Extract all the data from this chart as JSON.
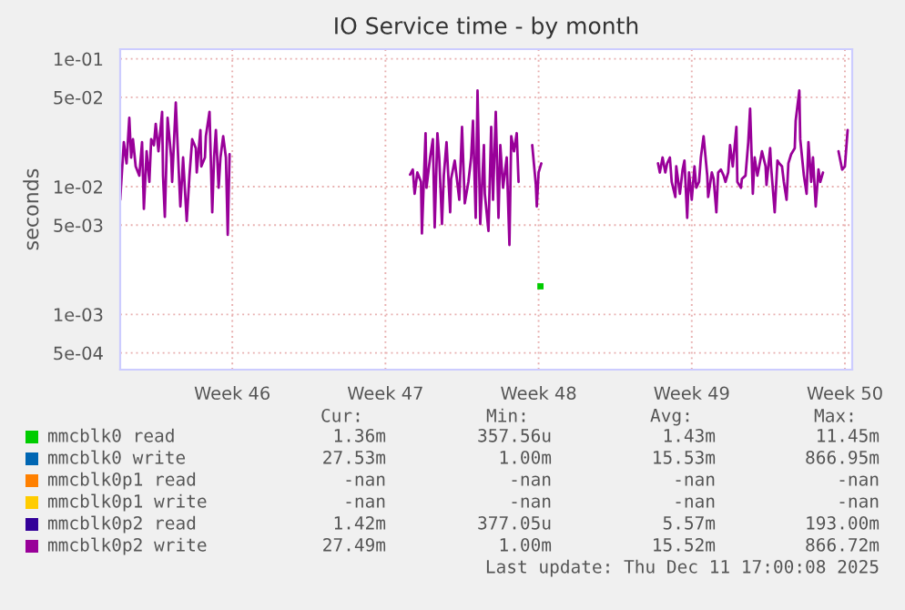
{
  "chart_data": {
    "type": "line",
    "title": "IO Service time - by month",
    "ylabel": "seconds",
    "log": "y",
    "grid": true,
    "legend": "bottom",
    "marker": "none",
    "line_style": "solid",
    "xlim": [
      "2025-11-07T21:00",
      "2025-12-11T08:00"
    ],
    "xticks": [
      {
        "value": "2025-11-13",
        "label": "Week 46"
      },
      {
        "value": "2025-11-20",
        "label": "Week 47"
      },
      {
        "value": "2025-11-27",
        "label": "Week 48"
      },
      {
        "value": "2025-12-04",
        "label": "Week 49"
      },
      {
        "value": "2025-12-11",
        "label": "Week 50"
      }
    ],
    "ylim": [
      0.00037,
      0.119
    ],
    "yticks": [
      {
        "value": 0.0005,
        "label": "5e-04"
      },
      {
        "value": 0.001,
        "label": "1e-03"
      },
      {
        "value": 0.005,
        "label": "5e-03"
      },
      {
        "value": 0.01,
        "label": "1e-02"
      },
      {
        "value": 0.05,
        "label": "5e-02"
      },
      {
        "value": 0.1,
        "label": "1e-01"
      }
    ],
    "series": [
      {
        "name": "mmcblk0 read",
        "color": "#00cc00",
        "type": "scatter",
        "marker": "square",
        "x": [
          "2025-11-27T02:00"
        ],
        "values": [
          0.00166
        ]
      },
      {
        "name": "mmcblk0 write",
        "color": "#0066b3"
      },
      {
        "name": "mmcblk0p1 read",
        "color": "#ff8000"
      },
      {
        "name": "mmcblk0p1 write",
        "color": "#ffcc00"
      },
      {
        "name": "mmcblk0p2 read",
        "color": "#330099"
      },
      {
        "name": "mmcblk0p2 write",
        "color": "#990099",
        "x": [
          "2025-11-07T21:00",
          "2025-11-08T01:00",
          "2025-11-08T04:00",
          "2025-11-08T07:00",
          "2025-11-08T09:00",
          "2025-11-08T11:00",
          "2025-11-08T14:00",
          "2025-11-08T18:00",
          "2025-11-08T21:00",
          "2025-11-08T23:00",
          "2025-11-09T02:00",
          "2025-11-09T05:00",
          "2025-11-09T07:00",
          "2025-11-09T10:00",
          "2025-11-09T12:00",
          "2025-11-09T15:00",
          "2025-11-09T19:00",
          "2025-11-09T20:00",
          "2025-11-09T22:00",
          "2025-11-10T01:00",
          "2025-11-10T05:00",
          "2025-11-10T06:00",
          "2025-11-10T10:00",
          "2025-11-10T12:00",
          "2025-11-10T15:00",
          "2025-11-10T17:00",
          "2025-11-10T18:00",
          "2025-11-10T22:00",
          "2025-11-11T01:00",
          "2025-11-11T04:00",
          "2025-11-11T08:00",
          "2025-11-11T09:00",
          "2025-11-11T13:00",
          "2025-11-11T14:00",
          "2025-11-11T18:00",
          "2025-11-11T19:00",
          "2025-11-11T23:00",
          "2025-11-12T02:00",
          "2025-11-12T04:00",
          "2025-11-12T06:00",
          "2025-11-12T09:00",
          "2025-11-12T11:00",
          "2025-11-12T14:00",
          "2025-11-12T17:00",
          "2025-11-12T19:00",
          "2025-11-12T21:00",
          "2025-11-16T12:00",
          "2025-11-21T03:00",
          "2025-11-21T06:00",
          "2025-11-21T08:00",
          "2025-11-21T11:00",
          "2025-11-21T15:00",
          "2025-11-21T16:00",
          "2025-11-21T20:00",
          "2025-11-21T21:00",
          "2025-11-22T01:00",
          "2025-11-22T04:00",
          "2025-11-22T06:00",
          "2025-11-22T09:00",
          "2025-11-22T11:00",
          "2025-11-22T14:00",
          "2025-11-22T16:00",
          "2025-11-22T19:00",
          "2025-11-22T23:00",
          "2025-11-23T00:00",
          "2025-11-23T04:00",
          "2025-11-23T09:00",
          "2025-11-23T12:00",
          "2025-11-23T15:00",
          "2025-11-23T19:00",
          "2025-11-23T22:00",
          "2025-11-24T00:00",
          "2025-11-24T03:00",
          "2025-11-24T05:00",
          "2025-11-24T08:00",
          "2025-11-24T12:00",
          "2025-11-24T13:00",
          "2025-11-24T17:00",
          "2025-11-24T20:00",
          "2025-11-24T22:00",
          "2025-11-25T01:00",
          "2025-11-25T04:00",
          "2025-11-25T06:00",
          "2025-11-25T09:00",
          "2025-11-25T13:00",
          "2025-11-25T16:00",
          "2025-11-25T18:00",
          "2025-11-25T21:00",
          "2025-11-26T00:00",
          "2025-11-26T02:00",
          "2025-11-26T11:00",
          "2025-11-26T17:00",
          "2025-11-26T21:00",
          "2025-11-26T22:00",
          "2025-11-27T00:00",
          "2025-11-27T03:00",
          "2025-11-29T19:00",
          "2025-12-02T11:00",
          "2025-12-02T13:00",
          "2025-12-02T16:00",
          "2025-12-02T19:00",
          "2025-12-02T21:00",
          "2025-12-03T00:00",
          "2025-12-03T02:00",
          "2025-12-03T06:00",
          "2025-12-03T07:00",
          "2025-12-03T11:00",
          "2025-12-03T14:00",
          "2025-12-03T16:00",
          "2025-12-03T19:00",
          "2025-12-03T21:00",
          "2025-12-04T00:00",
          "2025-12-04T03:00",
          "2025-12-04T05:00",
          "2025-12-04T08:00",
          "2025-12-04T10:00",
          "2025-12-04T13:00",
          "2025-12-04T17:00",
          "2025-12-04T18:00",
          "2025-12-04T22:00",
          "2025-12-05T00:00",
          "2025-12-05T03:00",
          "2025-12-05T05:00",
          "2025-12-05T08:00",
          "2025-12-05T11:00",
          "2025-12-05T13:00",
          "2025-12-05T16:00",
          "2025-12-05T18:00",
          "2025-12-05T21:00",
          "2025-12-06T01:00",
          "2025-12-06T02:00",
          "2025-12-06T06:00",
          "2025-12-06T07:00",
          "2025-12-06T11:00",
          "2025-12-06T14:00",
          "2025-12-06T16:00",
          "2025-12-06T19:00",
          "2025-12-06T21:00",
          "2025-12-07T00:00",
          "2025-12-07T02:00",
          "2025-12-07T05:00",
          "2025-12-07T09:00",
          "2025-12-07T10:00",
          "2025-12-07T14:00",
          "2025-12-07T15:00",
          "2025-12-07T19:00",
          "2025-12-07T22:00",
          "2025-12-08T00:00",
          "2025-12-08T03:00",
          "2025-12-08T05:00",
          "2025-12-08T08:00",
          "2025-12-08T10:00",
          "2025-12-08T13:00",
          "2025-12-08T17:00",
          "2025-12-08T18:00",
          "2025-12-08T22:00",
          "2025-12-08T23:00",
          "2025-12-09T03:00",
          "2025-12-09T06:00",
          "2025-12-09T08:00",
          "2025-12-09T11:00",
          "2025-12-09T13:00",
          "2025-12-09T16:00",
          "2025-12-09T19:00",
          "2025-12-09T21:00",
          "2025-12-10T00:00",
          "2025-12-10T09:00",
          "2025-12-10T17:00",
          "2025-12-10T21:00",
          "2025-12-11T00:00",
          "2025-12-11T03:00"
        ],
        "values": [
          0.0079,
          0.0223,
          0.0152,
          0.0345,
          0.0169,
          0.0235,
          0.0144,
          0.0122,
          0.0223,
          0.0067,
          0.0189,
          0.0109,
          0.0235,
          0.0211,
          0.0309,
          0.0189,
          0.0385,
          0.0122,
          0.0058,
          0.0345,
          0.0169,
          0.0109,
          0.0454,
          0.0211,
          0.007,
          0.0122,
          0.0169,
          0.0054,
          0.0122,
          0.0235,
          0.02,
          0.0129,
          0.0277,
          0.0144,
          0.0169,
          0.0248,
          0.0385,
          0.0063,
          0.0169,
          0.0277,
          0.0098,
          0.0169,
          0.0248,
          0.0169,
          0.0042,
          0.0179,
          null,
          0.0124,
          0.0136,
          0.0088,
          0.0129,
          0.0109,
          0.0043,
          0.0262,
          0.0098,
          0.0169,
          0.0235,
          0.0048,
          0.0262,
          0.0169,
          0.0051,
          0.0122,
          0.0223,
          0.0063,
          0.0115,
          0.016,
          0.0079,
          0.0293,
          0.0074,
          0.0109,
          0.0169,
          0.0327,
          0.0057,
          0.0565,
          0.0051,
          0.0211,
          0.0088,
          0.0045,
          0.0293,
          0.0079,
          0.0385,
          0.0057,
          0.0211,
          0.0098,
          0.0169,
          0.0035,
          0.0248,
          0.0189,
          0.0262,
          0.0109,
          null,
          0.0211,
          0.0103,
          0.007,
          0.0129,
          0.0152,
          null,
          0.0152,
          0.0129,
          0.0169,
          0.0129,
          0.0152,
          0.0169,
          0.0109,
          0.0083,
          0.0144,
          0.0088,
          0.0136,
          0.016,
          0.0057,
          0.0129,
          0.0079,
          0.0144,
          0.0098,
          0.0109,
          0.0169,
          0.0248,
          0.0122,
          0.0083,
          0.0129,
          0.0115,
          0.0063,
          0.0129,
          0.0136,
          0.0122,
          0.0109,
          0.0129,
          0.0211,
          0.0144,
          0.0293,
          0.0109,
          0.0098,
          0.0115,
          0.0122,
          0.0223,
          0.0407,
          0.0088,
          0.0169,
          0.0122,
          0.0144,
          0.0189,
          0.0144,
          0.0103,
          0.02,
          0.0144,
          0.0063,
          0.016,
          0.0152,
          0.0144,
          0.0109,
          0.0079,
          0.0152,
          0.0179,
          0.02,
          0.0327,
          0.0565,
          0.0235,
          0.0122,
          0.0088,
          0.0223,
          0.0109,
          0.0169,
          0.007,
          0.0136,
          0.0109,
          0.0129,
          null,
          0.0189,
          0.0136,
          0.0144,
          0.0277
        ]
      }
    ],
    "annotations": [
      "Cur:",
      "Min:",
      "Avg:",
      "Max:",
      "1.36m",
      "357.56u",
      "1.43m",
      "11.45m",
      "27.53m",
      "1.00m",
      "15.53m",
      "866.95m",
      "-nan",
      "-nan",
      "-nan",
      "-nan",
      "-nan",
      "-nan",
      "-nan",
      "-nan",
      "1.42m",
      "377.05u",
      "5.57m",
      "193.00m",
      "27.49m",
      "1.00m",
      "15.52m",
      "866.72m",
      "Last update: Thu Dec 11 17:00:08 2025"
    ]
  }
}
